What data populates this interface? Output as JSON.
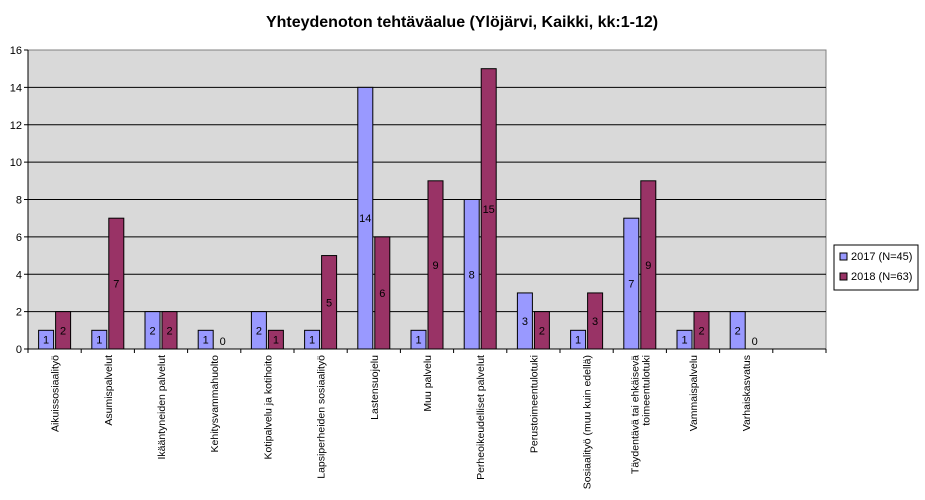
{
  "chart_data": {
    "type": "bar",
    "title": "Yhteydenoton tehtäväalue (Ylöjärvi, Kaikki, kk:1-12)",
    "categories": [
      "Aikuissosiaalityö",
      "Asumispalvelut",
      "Ikääntyneiden palvelut",
      "Kehitysvammahuolto",
      "Kotipalvelu ja kotihoito",
      "Lapsiperheiden sosiaalityö",
      "Lastensuojelu",
      "Muu palvelu",
      "Perheoikeudelliset palvelut",
      "Perustoimeentulotuki",
      "Sosiaalityö (muu kuin edellä)",
      "Täydentävä tai ehkäisevä toimeentulotuki",
      "Vammaispalvelu",
      "Varhaiskasvatus"
    ],
    "series": [
      {
        "name": "2017 (N=45)",
        "color": "#9999ff",
        "values": [
          1,
          1,
          2,
          1,
          2,
          1,
          14,
          1,
          8,
          3,
          1,
          7,
          1,
          2
        ]
      },
      {
        "name": "2018 (N=63)",
        "color": "#993366",
        "values": [
          2,
          7,
          2,
          0,
          1,
          5,
          6,
          9,
          15,
          2,
          3,
          9,
          2,
          0
        ]
      }
    ],
    "ylim": [
      0,
      16
    ],
    "yticks": [
      "0",
      "2",
      "4",
      "6",
      "8",
      "10",
      "12",
      "14",
      "16"
    ],
    "grid": true,
    "legend_position": "right",
    "plot_background": "#d9d9d9"
  }
}
